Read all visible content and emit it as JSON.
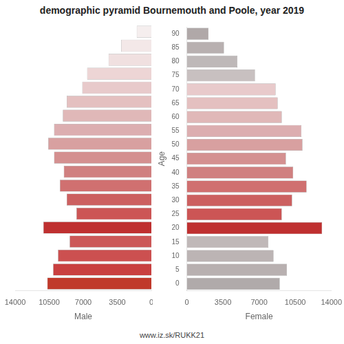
{
  "chart_data": [
    {
      "type": "bar",
      "orientation": "horizontal",
      "title": "demographic pyramid Bournemouth and Poole, year 2019",
      "xlabel": "Male",
      "categories": [
        "0",
        "5",
        "10",
        "15",
        "20",
        "25",
        "30",
        "35",
        "40",
        "45",
        "50",
        "55",
        "60",
        "65",
        "70",
        "75",
        "80",
        "85",
        "90"
      ],
      "values": [
        10700,
        10100,
        9600,
        8400,
        11100,
        7700,
        8700,
        9400,
        9000,
        10000,
        10600,
        10000,
        9100,
        8700,
        7100,
        6600,
        4400,
        3100,
        1500
      ],
      "colors": [
        "#c0392b",
        "#c94040",
        "#cc5050",
        "#cc5858",
        "#bf3030",
        "#cc5555",
        "#cc6060",
        "#d07070",
        "#d08080",
        "#d49090",
        "#d8a0a0",
        "#dcaeb0",
        "#e0b8b8",
        "#e4c0c0",
        "#e8cacb",
        "#edd5d5",
        "#f0e0e0",
        "#f3e8e8",
        "#f5eeee"
      ],
      "xlim": [
        14000,
        0
      ],
      "xticks": [
        0,
        3500,
        7000,
        10500,
        14000
      ],
      "grid": false,
      "tick_labels": "x"
    },
    {
      "type": "bar",
      "orientation": "horizontal",
      "xlabel": "Female",
      "ylabel": "Age",
      "categories": [
        "0",
        "5",
        "10",
        "15",
        "20",
        "25",
        "30",
        "35",
        "40",
        "45",
        "50",
        "55",
        "60",
        "65",
        "70",
        "75",
        "80",
        "85",
        "90"
      ],
      "values": [
        9000,
        9700,
        8400,
        7900,
        13100,
        9200,
        10200,
        11600,
        10300,
        9600,
        11200,
        11100,
        9200,
        8800,
        8600,
        6600,
        4900,
        3600,
        2100
      ],
      "colors": [
        "#b0aaaa",
        "#b8b0b0",
        "#bcb4b4",
        "#c0b8b8",
        "#bf3030",
        "#cc5555",
        "#cc6060",
        "#d07070",
        "#d08080",
        "#d49090",
        "#d8a0a0",
        "#dcaeb0",
        "#e0b8b8",
        "#e4c0c0",
        "#e8cacb",
        "#c8c0c0",
        "#beb8b8",
        "#b8b0b0",
        "#b0a8a8"
      ],
      "xlim": [
        0,
        14000
      ],
      "xticks": [
        0,
        3500,
        7000,
        10500,
        14000
      ],
      "grid": false,
      "annotations": [
        "www.iz.sk/RUKK21"
      ]
    }
  ]
}
